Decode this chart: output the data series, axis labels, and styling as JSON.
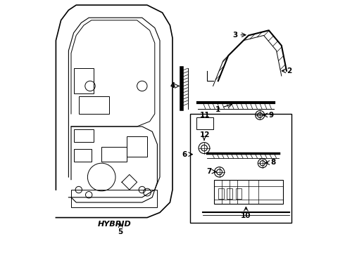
{
  "background_color": "#ffffff",
  "line_color": "#000000",
  "text_color": "#000000",
  "label_fontsize": 7.5,
  "hybrid_text": "HYBRID",
  "part_labels": [
    "1",
    "2",
    "3",
    "4",
    "5",
    "6",
    "7",
    "8",
    "9",
    "10",
    "11",
    "12"
  ]
}
